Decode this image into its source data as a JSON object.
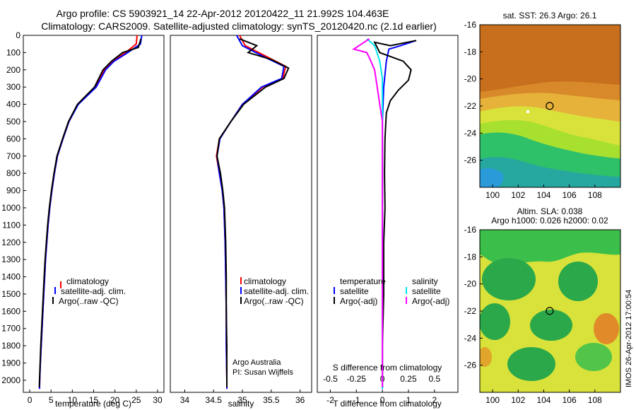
{
  "header": {
    "line1": "Argo profile: CS 5903921_14 22-Apr-2012 20120422_11 21.992S 104.463E",
    "line2": "Climatology: CARS2009. Satellite-adjusted climatology: synTS_20120420.nc (2.1d earlier)"
  },
  "colors": {
    "climatology": "#ff0000",
    "satellite": "#0000ff",
    "argo": "#000000",
    "sat_salinity": "#00e5ee",
    "argo_salinity_adj": "#ff00ff"
  },
  "chart_data": [
    {
      "type": "line",
      "name": "temperature-profile",
      "xlabel": "temperature (deg C)",
      "ylabel": "",
      "xlim": [
        -1.5,
        31.5
      ],
      "ylim": [
        2070,
        0
      ],
      "xticks": [
        0,
        5,
        10,
        15,
        20,
        25,
        30
      ],
      "yticks": [
        0,
        100,
        200,
        300,
        400,
        500,
        600,
        700,
        800,
        900,
        1000,
        1100,
        1200,
        1300,
        1400,
        1500,
        1600,
        1700,
        1800,
        1900,
        2000
      ],
      "legend": [
        "climatology",
        "satellite-adj. clim.",
        "Argo(..raw -QC)"
      ],
      "series": [
        {
          "name": "climatology",
          "color": "#ff0000",
          "points": [
            [
              25.2,
              0
            ],
            [
              25.0,
              50
            ],
            [
              22.5,
              100
            ],
            [
              19.5,
              150
            ],
            [
              17.5,
              200
            ],
            [
              15.5,
              300
            ],
            [
              11.3,
              400
            ],
            [
              9.2,
              500
            ],
            [
              7.8,
              600
            ],
            [
              6.5,
              700
            ],
            [
              5.8,
              800
            ],
            [
              5.2,
              900
            ],
            [
              4.7,
              1000
            ],
            [
              4.3,
              1100
            ],
            [
              4.0,
              1200
            ],
            [
              3.7,
              1300
            ],
            [
              3.5,
              1400
            ],
            [
              3.3,
              1500
            ],
            [
              3.1,
              1600
            ],
            [
              2.9,
              1700
            ],
            [
              2.7,
              1800
            ],
            [
              2.5,
              1900
            ],
            [
              2.35,
              2000
            ],
            [
              2.3,
              2050
            ]
          ]
        },
        {
          "name": "satellite-adj. clim.",
          "color": "#0000ff",
          "points": [
            [
              26.3,
              0
            ],
            [
              26.0,
              50
            ],
            [
              23.0,
              100
            ],
            [
              19.8,
              150
            ],
            [
              17.8,
              200
            ],
            [
              15.6,
              300
            ],
            [
              11.4,
              400
            ],
            [
              9.2,
              500
            ],
            [
              7.8,
              600
            ],
            [
              6.5,
              700
            ],
            [
              5.8,
              800
            ],
            [
              5.2,
              900
            ],
            [
              4.7,
              1000
            ],
            [
              4.3,
              1100
            ],
            [
              4.0,
              1200
            ],
            [
              3.7,
              1300
            ],
            [
              3.5,
              1400
            ],
            [
              3.3,
              1500
            ],
            [
              3.1,
              1600
            ],
            [
              2.9,
              1700
            ],
            [
              2.7,
              1800
            ],
            [
              2.5,
              1900
            ],
            [
              2.35,
              2000
            ],
            [
              2.3,
              2050
            ]
          ]
        },
        {
          "name": "Argo(..raw -QC)",
          "color": "#000000",
          "points": [
            [
              26.1,
              20
            ],
            [
              25.5,
              70
            ],
            [
              21.8,
              100
            ],
            [
              19.2,
              150
            ],
            [
              17.2,
              200
            ],
            [
              15.2,
              300
            ],
            [
              11.2,
              400
            ],
            [
              9.1,
              500
            ],
            [
              7.7,
              600
            ],
            [
              6.4,
              700
            ],
            [
              5.7,
              800
            ],
            [
              5.1,
              900
            ],
            [
              4.6,
              1000
            ],
            [
              4.2,
              1100
            ],
            [
              3.9,
              1200
            ],
            [
              3.6,
              1300
            ],
            [
              3.4,
              1400
            ],
            [
              3.2,
              1500
            ],
            [
              3.0,
              1600
            ],
            [
              2.8,
              1700
            ],
            [
              2.6,
              1800
            ],
            [
              2.45,
              1900
            ],
            [
              2.3,
              2000
            ],
            [
              2.25,
              2040
            ]
          ]
        }
      ]
    },
    {
      "type": "line",
      "name": "salinity-profile",
      "xlabel": "salinity",
      "xlim": [
        33.75,
        36.2
      ],
      "ylim": [
        2070,
        0
      ],
      "xticks": [
        34,
        34.5,
        35,
        35.5,
        36
      ],
      "legend": [
        "climatology",
        "satellite-adj. clim.",
        "Argo(..raw -QC)"
      ],
      "annotation": [
        "Argo Australia",
        "PI: Susan Wijffels"
      ],
      "series": [
        {
          "name": "climatology",
          "color": "#ff0000",
          "points": [
            [
              34.95,
              0
            ],
            [
              35.05,
              60
            ],
            [
              35.4,
              120
            ],
            [
              35.75,
              180
            ],
            [
              35.7,
              250
            ],
            [
              35.35,
              300
            ],
            [
              35.0,
              400
            ],
            [
              34.8,
              500
            ],
            [
              34.6,
              600
            ],
            [
              34.55,
              700
            ],
            [
              34.6,
              800
            ],
            [
              34.65,
              900
            ],
            [
              34.68,
              1000
            ],
            [
              34.7,
              1200
            ],
            [
              34.71,
              1400
            ],
            [
              34.72,
              1600
            ],
            [
              34.72,
              1800
            ],
            [
              34.73,
              2000
            ],
            [
              34.73,
              2050
            ]
          ]
        },
        {
          "name": "satellite-adj. clim.",
          "color": "#0000ff",
          "points": [
            [
              34.9,
              0
            ],
            [
              35.0,
              60
            ],
            [
              35.35,
              120
            ],
            [
              35.72,
              180
            ],
            [
              35.68,
              250
            ],
            [
              35.33,
              300
            ],
            [
              35.0,
              400
            ],
            [
              34.8,
              500
            ],
            [
              34.61,
              600
            ],
            [
              34.56,
              700
            ],
            [
              34.6,
              800
            ],
            [
              34.65,
              900
            ],
            [
              34.68,
              1000
            ],
            [
              34.7,
              1200
            ],
            [
              34.71,
              1400
            ],
            [
              34.72,
              1600
            ],
            [
              34.72,
              1800
            ],
            [
              34.73,
              2000
            ],
            [
              34.73,
              2050
            ]
          ]
        },
        {
          "name": "Argo(..raw -QC)",
          "color": "#000000",
          "points": [
            [
              34.95,
              20
            ],
            [
              35.25,
              60
            ],
            [
              35.1,
              100
            ],
            [
              35.5,
              140
            ],
            [
              35.8,
              190
            ],
            [
              35.72,
              250
            ],
            [
              35.4,
              300
            ],
            [
              35.02,
              400
            ],
            [
              34.8,
              500
            ],
            [
              34.6,
              600
            ],
            [
              34.56,
              700
            ],
            [
              34.62,
              800
            ],
            [
              34.66,
              900
            ],
            [
              34.69,
              1000
            ],
            [
              34.71,
              1200
            ],
            [
              34.72,
              1400
            ],
            [
              34.72,
              1600
            ],
            [
              34.73,
              1800
            ],
            [
              34.73,
              2000
            ],
            [
              34.73,
              2040
            ]
          ]
        }
      ]
    },
    {
      "type": "line",
      "name": "difference-profile",
      "xlabel": "T difference from climatology",
      "xlabel_top": "S difference from climatology",
      "xlim": [
        -2.5,
        2.9
      ],
      "ylim": [
        2070,
        0
      ],
      "xticks": [
        -2,
        -1,
        0,
        1,
        2
      ],
      "xticks_top": [
        "-0.5",
        "-0.25",
        "0",
        "0.25",
        "0.5"
      ],
      "xticks_top_values": [
        -2,
        -1,
        0,
        1,
        2
      ],
      "legend_titles": [
        "temperature",
        "salinity"
      ],
      "legend": [
        "satellite",
        "Argo(-adj)",
        "satellite",
        "Argo(-adj)"
      ],
      "series": [
        {
          "name": "temperature satellite",
          "color": "#0000ff",
          "points": [
            [
              1.3,
              30
            ],
            [
              0.7,
              60
            ],
            [
              0.25,
              80
            ],
            [
              0.15,
              150
            ],
            [
              0.05,
              300
            ],
            [
              0.0,
              500
            ],
            [
              0.0,
              1000
            ],
            [
              0.0,
              1500
            ],
            [
              0.0,
              2050
            ]
          ]
        },
        {
          "name": "temperature Argo(-adj)",
          "color": "#000000",
          "points": [
            [
              1.3,
              30
            ],
            [
              0.3,
              60
            ],
            [
              -0.3,
              40
            ],
            [
              -0.1,
              100
            ],
            [
              0.8,
              150
            ],
            [
              1.1,
              200
            ],
            [
              1.0,
              260
            ],
            [
              0.6,
              320
            ],
            [
              0.3,
              380
            ],
            [
              0.15,
              450
            ],
            [
              0.1,
              600
            ],
            [
              0.08,
              800
            ],
            [
              0.1,
              1000
            ],
            [
              0.05,
              1200
            ],
            [
              0.05,
              1500
            ],
            [
              0.0,
              1800
            ],
            [
              0.0,
              2040
            ]
          ]
        },
        {
          "name": "salinity satellite",
          "color": "#00e5ee",
          "points": [
            [
              -0.6,
              20
            ],
            [
              -0.3,
              60
            ],
            [
              -0.1,
              150
            ],
            [
              0.0,
              250
            ],
            [
              0.0,
              400
            ],
            [
              0.0,
              700
            ],
            [
              0.0,
              1000
            ],
            [
              0.0,
              1500
            ],
            [
              0.0,
              2050
            ]
          ]
        },
        {
          "name": "salinity Argo(-adj)",
          "color": "#ff00ff",
          "points": [
            [
              -0.5,
              20
            ],
            [
              -1.1,
              80
            ],
            [
              -0.6,
              100
            ],
            [
              -0.5,
              130
            ],
            [
              -0.3,
              200
            ],
            [
              -0.2,
              300
            ],
            [
              -0.1,
              400
            ],
            [
              0.0,
              500
            ],
            [
              0.0,
              700
            ],
            [
              0.0,
              1000
            ],
            [
              0.0,
              1500
            ],
            [
              0.0,
              2040
            ]
          ]
        }
      ]
    },
    {
      "type": "heatmap",
      "name": "sst-map",
      "title": "sat. SST: 26.3 Argo: 26.1",
      "xlim": [
        99,
        110
      ],
      "ylim": [
        -28,
        -16
      ],
      "xticks": [
        100,
        102,
        104,
        106,
        108
      ],
      "yticks": [
        -16,
        -18,
        -20,
        -22,
        -24,
        -26
      ],
      "marker": {
        "lon": 104.463,
        "lat": -21.992
      }
    },
    {
      "type": "heatmap",
      "name": "sla-map",
      "title": "Altim. SLA: 0.038",
      "subtitle": "Argo h1000: 0.026 h2000: 0.02",
      "xlim": [
        99,
        110
      ],
      "ylim": [
        -28,
        -16
      ],
      "xticks": [
        100,
        102,
        104,
        106,
        108
      ],
      "yticks": [
        -16,
        -18,
        -20,
        -22,
        -24,
        -26
      ],
      "marker": {
        "lon": 104.463,
        "lat": -21.992
      }
    }
  ],
  "footer_stamp": "IMOS 26-Apr-2012 17:00:54"
}
